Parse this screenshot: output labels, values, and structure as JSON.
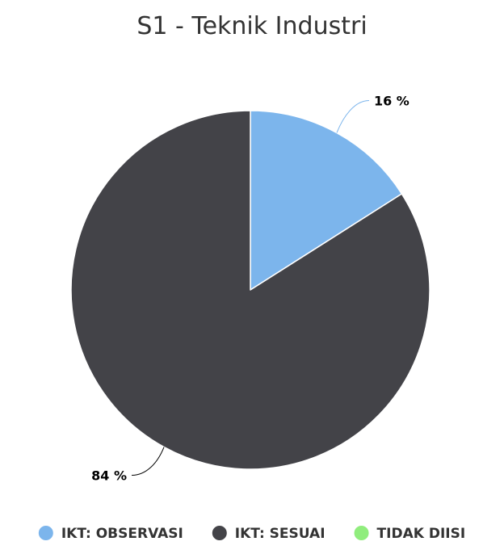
{
  "chart_data": {
    "type": "pie",
    "title": "S1 - Teknik Industri",
    "slices": [
      {
        "name": "IKT: OBSERVASI",
        "value": 16,
        "label": "16 %",
        "color": "#7cb5ec"
      },
      {
        "name": "IKT: SESUAI",
        "value": 84,
        "label": "84 %",
        "color": "#434348"
      },
      {
        "name": "TIDAK DIISI",
        "value": 0,
        "label": "",
        "color": "#90ed7d"
      }
    ],
    "legend": {
      "position": "bottom",
      "items": [
        {
          "name": "IKT: OBSERVASI",
          "color": "#7cb5ec"
        },
        {
          "name": "IKT: SESUAI",
          "color": "#434348"
        },
        {
          "name": "TIDAK DIISI",
          "color": "#90ed7d"
        }
      ]
    },
    "connector_color": "#7cb5ec"
  }
}
